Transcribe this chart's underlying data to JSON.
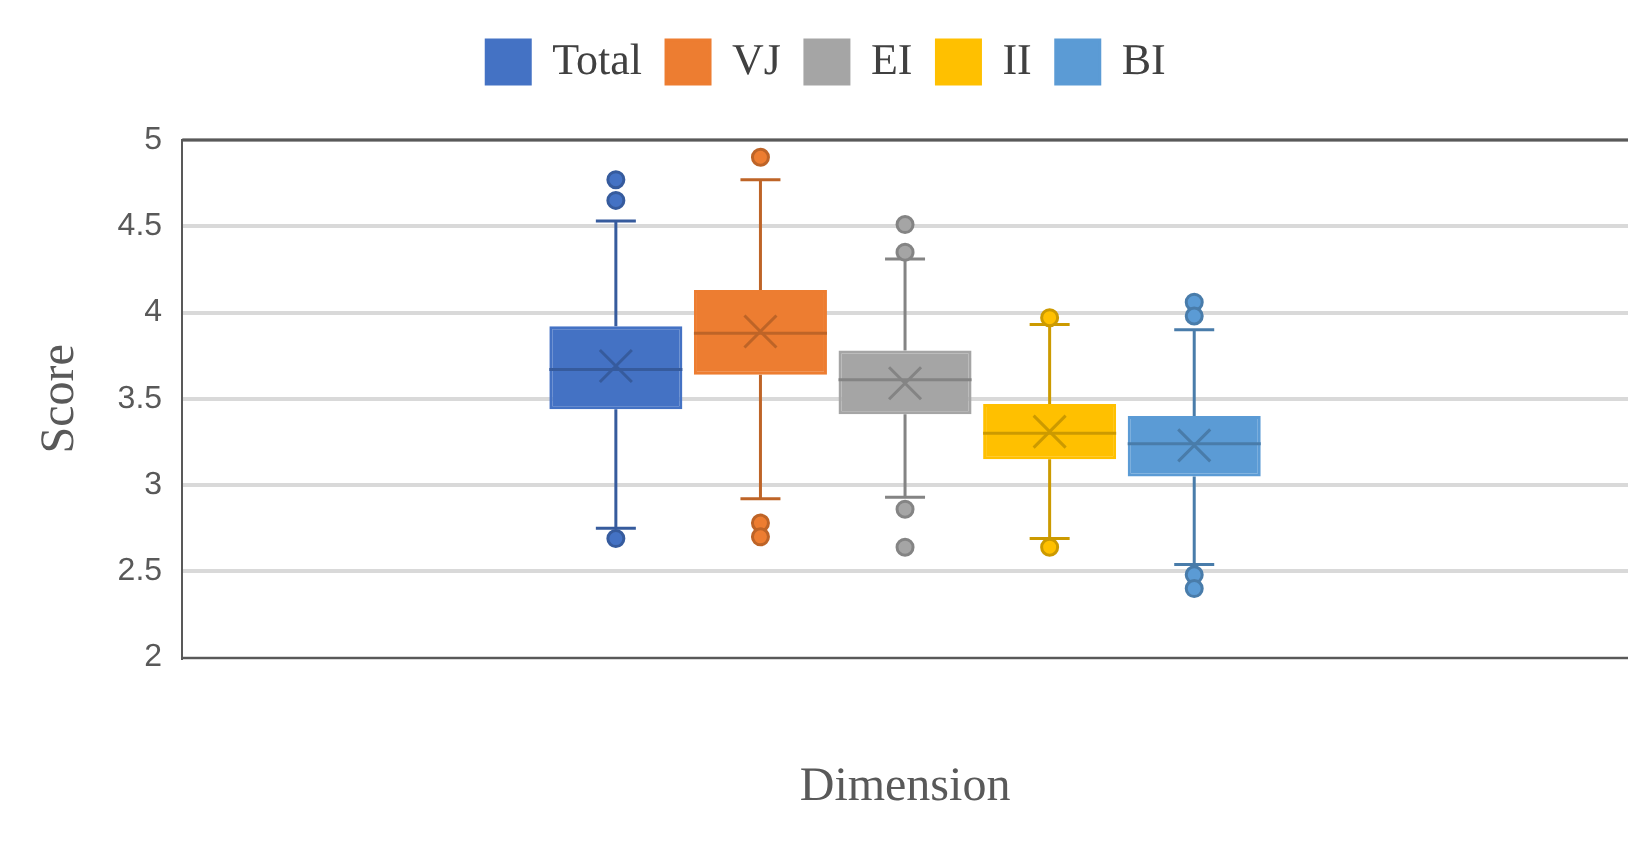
{
  "chart_data": {
    "type": "box",
    "xlabel": "Dimension",
    "ylabel": "Score",
    "categories": [
      null
    ],
    "ylim": [
      2,
      5
    ],
    "yticks": [
      2,
      2.5,
      3,
      3.5,
      4,
      4.5,
      5
    ],
    "grid": "y",
    "legend": "top",
    "series": [
      {
        "name": "Total",
        "color": "#4472c4",
        "boxes": [
          {
            "low": 2.75,
            "q1": 3.44,
            "median": 3.67,
            "q3": 3.92,
            "high": 4.53,
            "mean": 3.69,
            "outliers": [
              4.77,
              4.65,
              2.69
            ]
          }
        ]
      },
      {
        "name": "VJ",
        "color": "#ed7d31",
        "boxes": [
          {
            "low": 2.92,
            "q1": 3.64,
            "median": 3.88,
            "q3": 4.13,
            "high": 4.77,
            "mean": 3.89,
            "outliers": [
              4.9,
              2.78,
              2.7
            ]
          }
        ]
      },
      {
        "name": "EI",
        "color": "#a5a5a5",
        "boxes": [
          {
            "low": 2.93,
            "q1": 3.41,
            "median": 3.61,
            "q3": 3.78,
            "high": 4.31,
            "mean": 3.59,
            "outliers": [
              4.51,
              4.35,
              2.86,
              2.64
            ]
          }
        ]
      },
      {
        "name": "II",
        "color": "#ffc000",
        "boxes": [
          {
            "low": 2.69,
            "q1": 3.15,
            "median": 3.3,
            "q3": 3.47,
            "high": 3.93,
            "mean": 3.31,
            "outliers": [
              3.97,
              2.64
            ]
          }
        ]
      },
      {
        "name": "BI",
        "color": "#5b9bd5",
        "boxes": [
          {
            "low": 2.54,
            "q1": 3.05,
            "median": 3.24,
            "q3": 3.4,
            "high": 3.9,
            "mean": 3.23,
            "outliers": [
              4.06,
              3.98,
              2.48,
              2.4
            ]
          }
        ]
      }
    ]
  }
}
